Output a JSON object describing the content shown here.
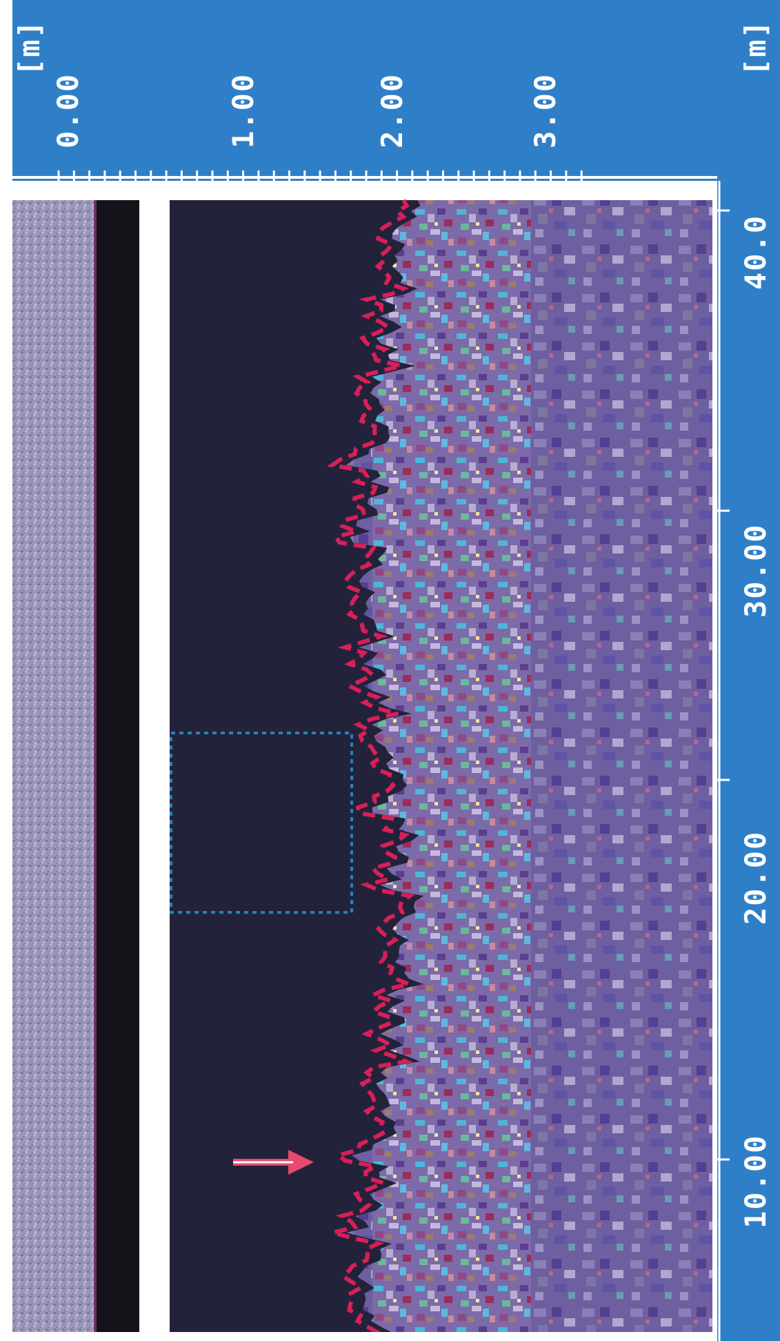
{
  "depth_axis": {
    "unit_label": "[m]",
    "tick_labels": [
      "0.00",
      "1.00",
      "2.00",
      "3.00"
    ]
  },
  "distance_axis": {
    "unit_label": "[m]",
    "tick_labels": [
      "10.00",
      "20.00",
      "30.00",
      "40.0"
    ]
  },
  "colors": {
    "frame_blue": "#2f7fc8",
    "boundary_line": "#d81f58",
    "annotation_box": "#2a7fbf",
    "arrow": "#e84a6e"
  }
}
